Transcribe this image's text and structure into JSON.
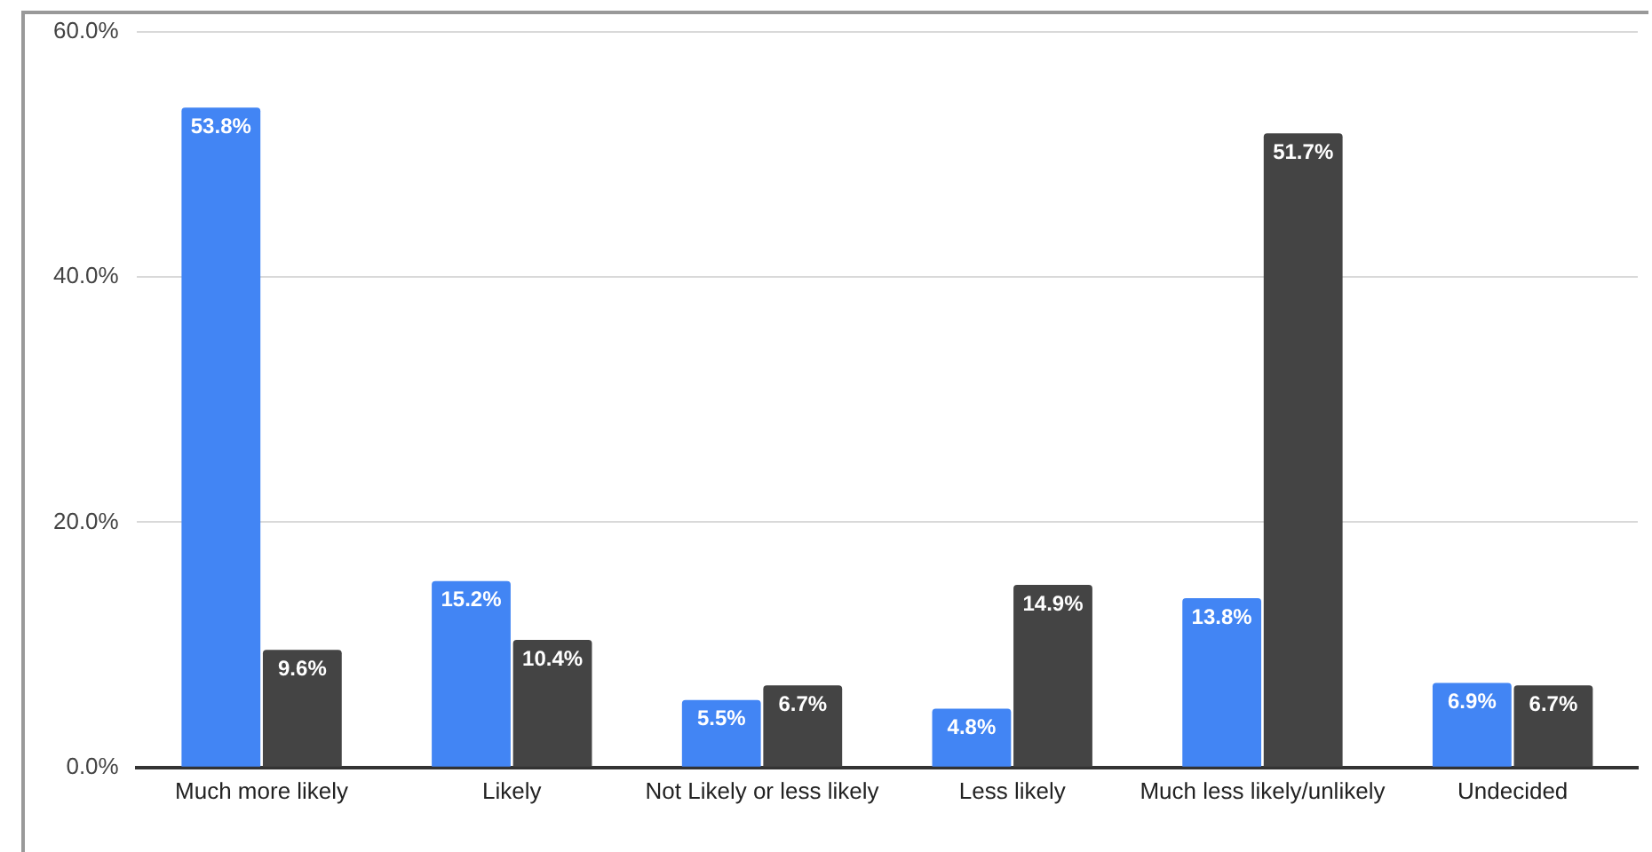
{
  "chart_data": {
    "type": "bar",
    "categories": [
      "Much more likely",
      "Likely",
      "Not Likely or less likely",
      "Less likely",
      "Much less likely/unlikely",
      "Undecided"
    ],
    "series": [
      {
        "color": "#4285f4",
        "values": [
          53.8,
          15.2,
          5.5,
          4.8,
          13.8,
          6.9
        ],
        "value_labels": [
          "53.8%",
          "15.2%",
          "5.5%",
          "4.8%",
          "13.8%",
          "6.9%"
        ]
      },
      {
        "color": "#444444",
        "values": [
          9.6,
          10.4,
          6.7,
          14.9,
          51.7,
          6.7
        ],
        "value_labels": [
          "9.6%",
          "10.4%",
          "6.7%",
          "14.9%",
          "51.7%",
          "6.7%"
        ]
      }
    ],
    "ylim": [
      0,
      60
    ],
    "yticks": [
      {
        "value": 0,
        "label": "0.0%"
      },
      {
        "value": 20,
        "label": "20.0%"
      },
      {
        "value": 40,
        "label": "40.0%"
      },
      {
        "value": 60,
        "label": "60.0%"
      }
    ],
    "grid": "y",
    "legend": false
  }
}
